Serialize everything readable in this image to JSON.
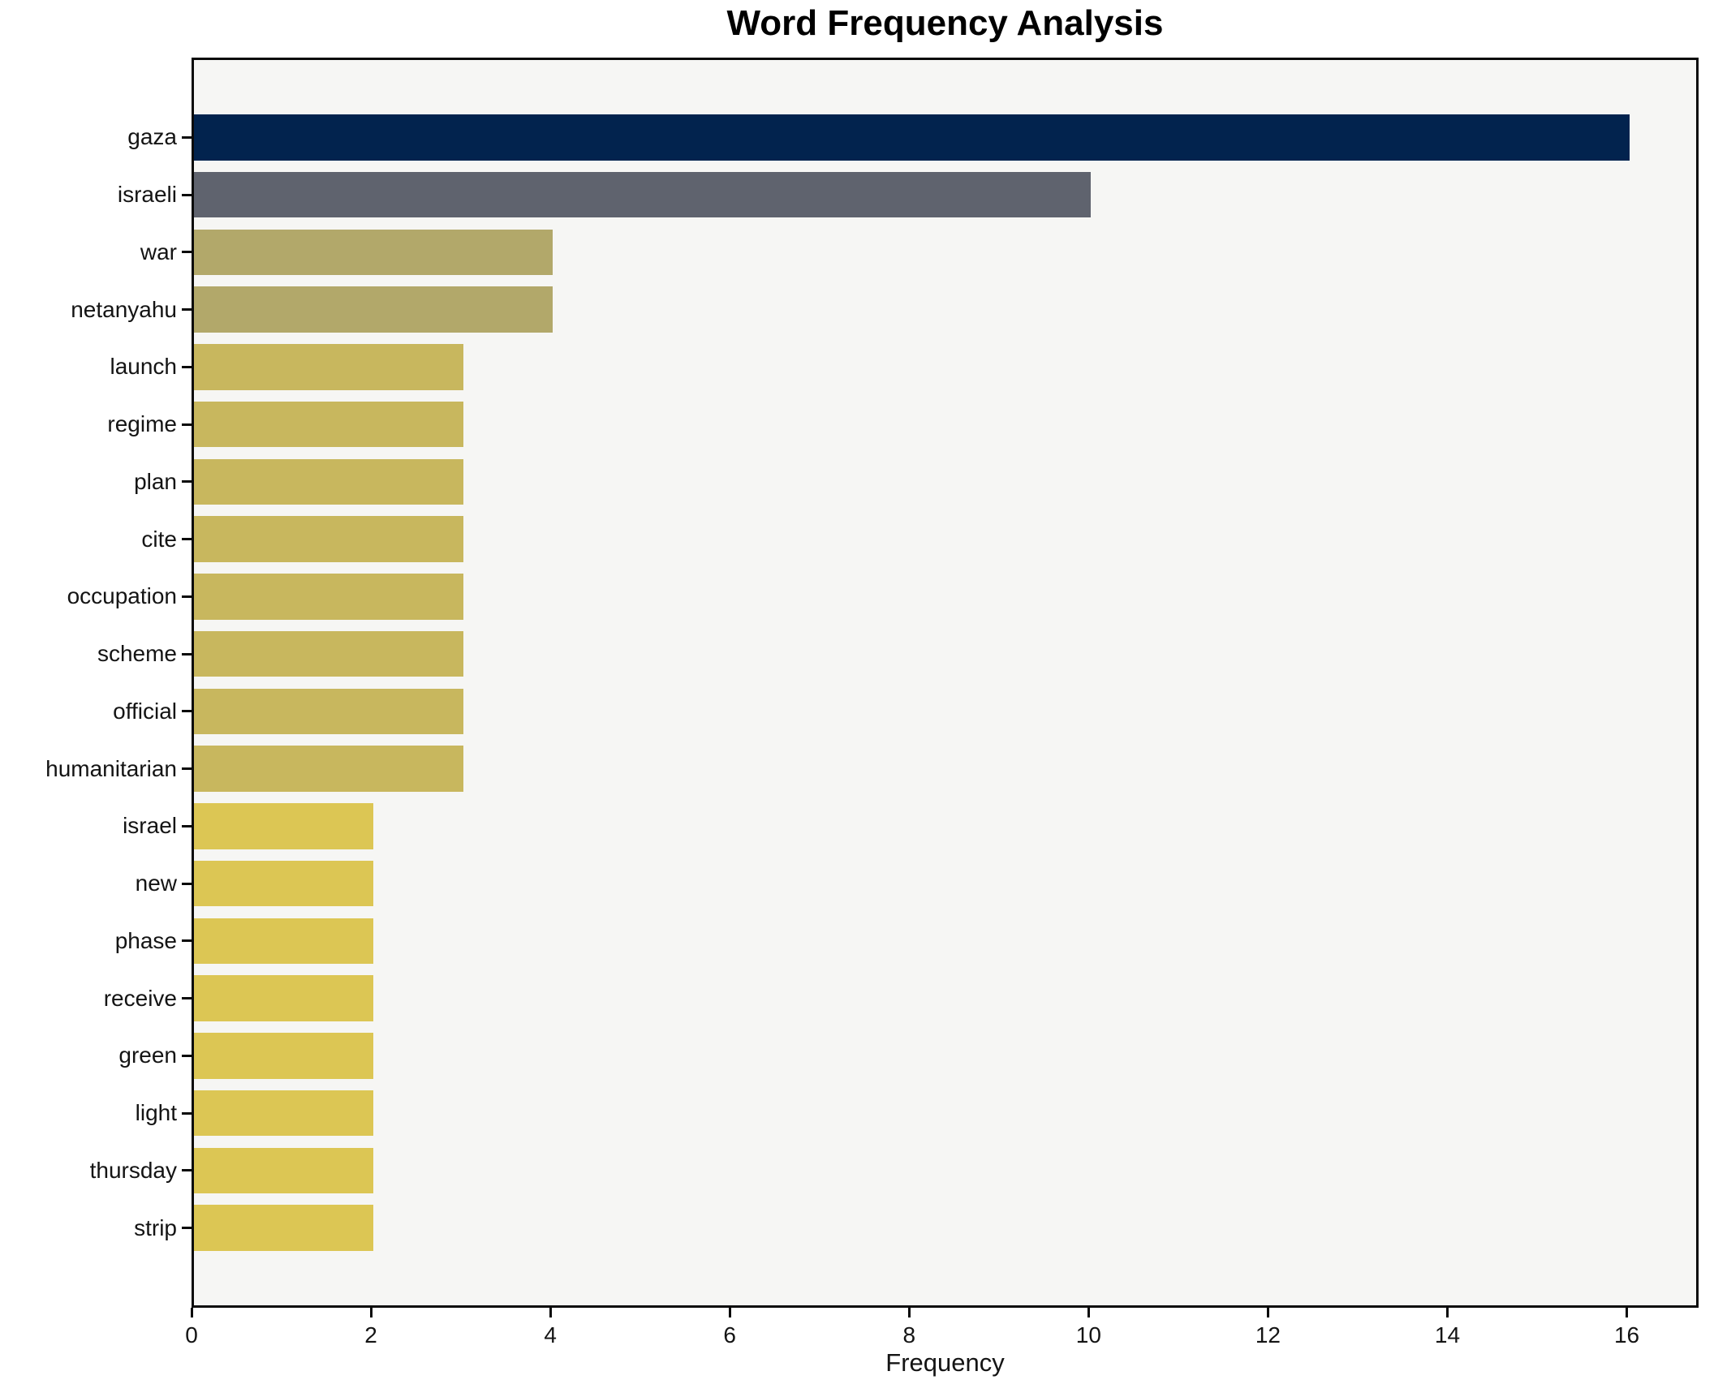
{
  "figure": {
    "background_color": "#ffffff",
    "plot_background_color": "#f6f6f4",
    "spine_color": "#0a0a0a",
    "text_color": "#141414"
  },
  "chart_data": {
    "type": "bar",
    "orientation": "horizontal",
    "title": "Word Frequency Analysis",
    "xlabel": "Frequency",
    "ylabel": "",
    "categories": [
      "gaza",
      "israeli",
      "war",
      "netanyahu",
      "launch",
      "regime",
      "plan",
      "cite",
      "occupation",
      "scheme",
      "official",
      "humanitarian",
      "israel",
      "new",
      "phase",
      "receive",
      "green",
      "light",
      "thursday",
      "strip"
    ],
    "values": [
      16,
      10,
      4,
      4,
      3,
      3,
      3,
      3,
      3,
      3,
      3,
      3,
      2,
      2,
      2,
      2,
      2,
      2,
      2,
      2
    ],
    "bar_colors": [
      "#02234e",
      "#5f636e",
      "#b2a86a",
      "#b2a86a",
      "#c8b75e",
      "#c8b75e",
      "#c8b75e",
      "#c8b75e",
      "#c8b75e",
      "#c8b75e",
      "#c8b75e",
      "#c8b75e",
      "#dcc654",
      "#dcc654",
      "#dcc654",
      "#dcc654",
      "#dcc654",
      "#dcc654",
      "#dcc654",
      "#dcc654"
    ],
    "xlim": [
      0,
      16.8
    ],
    "xticks": [
      0,
      2,
      4,
      6,
      8,
      10,
      12,
      14,
      16
    ],
    "grid": false,
    "legend": null,
    "bar_height_fraction": 0.8
  }
}
